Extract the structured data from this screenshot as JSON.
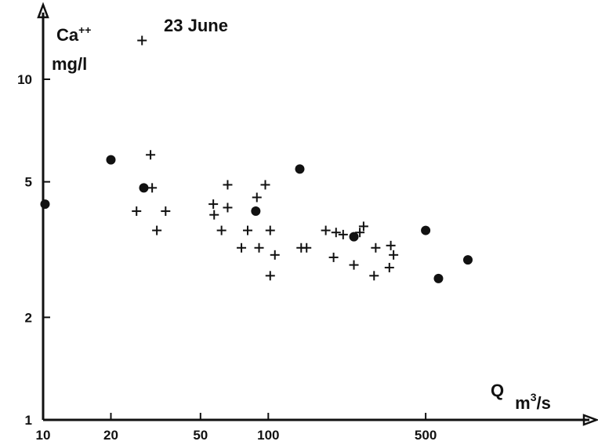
{
  "chart_data": {
    "type": "scatter",
    "x_scale": "log",
    "y_scale": "log",
    "xlim": [
      10,
      800
    ],
    "ylim": [
      1,
      15
    ],
    "x_ticks": [
      "10",
      "20",
      "50",
      "100",
      "500"
    ],
    "y_ticks": [
      "1",
      "2",
      "5",
      "10"
    ],
    "x_label": {
      "main": "Q",
      "unit_base": "m",
      "unit_sup": "3",
      "unit_tail": "/s"
    },
    "y_label": {
      "line1_base": "Ca",
      "line1_sup": "++",
      "line2": "mg/l"
    },
    "annotation": "23 June",
    "grid": false,
    "series": [
      {
        "marker": "plus",
        "points": [
          [
            27.5,
            13.0
          ],
          [
            30,
            6.0
          ],
          [
            30.5,
            4.8
          ],
          [
            26,
            4.1
          ],
          [
            32,
            3.6
          ],
          [
            35,
            4.1
          ],
          [
            57,
            4.3
          ],
          [
            57.5,
            4.0
          ],
          [
            62,
            3.6
          ],
          [
            66,
            4.9
          ],
          [
            66,
            4.2
          ],
          [
            76,
            3.2
          ],
          [
            81,
            3.6
          ],
          [
            89,
            4.5
          ],
          [
            91,
            3.2
          ],
          [
            97,
            4.9
          ],
          [
            102,
            3.6
          ],
          [
            102,
            2.65
          ],
          [
            107,
            3.05
          ],
          [
            140,
            3.2
          ],
          [
            148,
            3.2
          ],
          [
            180,
            3.6
          ],
          [
            195,
            3.0
          ],
          [
            200,
            3.55
          ],
          [
            215,
            3.5
          ],
          [
            240,
            2.85
          ],
          [
            255,
            3.55
          ],
          [
            265,
            3.7
          ],
          [
            295,
            2.65
          ],
          [
            300,
            3.2
          ],
          [
            345,
            2.8
          ],
          [
            350,
            3.25
          ],
          [
            360,
            3.05
          ]
        ]
      },
      {
        "marker": "dot",
        "points": [
          [
            10.2,
            4.3
          ],
          [
            20,
            5.8
          ],
          [
            28,
            4.8
          ],
          [
            88,
            4.1
          ],
          [
            138,
            5.45
          ],
          [
            240,
            3.45
          ],
          [
            500,
            3.6
          ],
          [
            570,
            2.6
          ],
          [
            770,
            2.95
          ]
        ]
      }
    ]
  }
}
